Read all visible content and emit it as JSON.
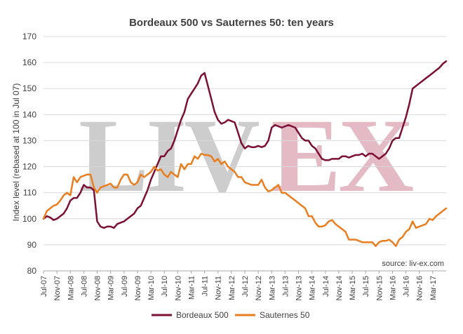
{
  "chart_data": {
    "type": "line",
    "title": "Bordeaux 500 vs Sauternes 50: ten years",
    "ylabel": "Index level (rebased at 100 in Jul 07)",
    "xlabel": "",
    "ylim": [
      80,
      170
    ],
    "yticks": [
      80,
      90,
      100,
      110,
      120,
      130,
      140,
      150,
      160,
      170
    ],
    "grid": "horizontal",
    "legend": "bottom",
    "x_range": [
      "2007-07",
      "2017-07"
    ],
    "x_tick_labels": [
      "Jul-07",
      "Nov-07",
      "Mar-08",
      "Jul-08",
      "Nov-08",
      "Mar-09",
      "Jul-09",
      "Nov-09",
      "Mar-10",
      "Jul-10",
      "Nov-10",
      "Mar-11",
      "Jul-11",
      "Nov-11",
      "Mar-12",
      "Jul-12",
      "Nov-12",
      "Mar-13",
      "Jul-13",
      "Nov-13",
      "Mar-14",
      "Jul-14",
      "Nov-14",
      "Mar-15",
      "Jul-15",
      "Nov-15",
      "Mar-16",
      "Jul-16",
      "Nov-16",
      "Mar-17"
    ],
    "source": "source: liv-ex.com",
    "watermark": {
      "text_left": "LIV",
      "text_right": "EX",
      "color_left": "#c8c8c8",
      "color_right": "#e2b4bf"
    },
    "series": [
      {
        "name": "Bordeaux 500",
        "color": "#7b1034",
        "points": [
          [
            "2007-07",
            100
          ],
          [
            "2007-08",
            101
          ],
          [
            "2007-09",
            100.5
          ],
          [
            "2007-10",
            99.5
          ],
          [
            "2007-11",
            100
          ],
          [
            "2007-12",
            101
          ],
          [
            "2008-01",
            102
          ],
          [
            "2008-02",
            104
          ],
          [
            "2008-03",
            107
          ],
          [
            "2008-04",
            108
          ],
          [
            "2008-05",
            108
          ],
          [
            "2008-06",
            110
          ],
          [
            "2008-07",
            113
          ],
          [
            "2008-08",
            112
          ],
          [
            "2008-09",
            112
          ],
          [
            "2008-10",
            111
          ],
          [
            "2008-11",
            99
          ],
          [
            "2008-12",
            97
          ],
          [
            "2009-01",
            96.5
          ],
          [
            "2009-02",
            97
          ],
          [
            "2009-03",
            97
          ],
          [
            "2009-04",
            96.5
          ],
          [
            "2009-05",
            98
          ],
          [
            "2009-06",
            98.5
          ],
          [
            "2009-07",
            99
          ],
          [
            "2009-08",
            100
          ],
          [
            "2009-09",
            101
          ],
          [
            "2009-10",
            102
          ],
          [
            "2009-11",
            104
          ],
          [
            "2009-12",
            105
          ],
          [
            "2010-01",
            108
          ],
          [
            "2010-02",
            111
          ],
          [
            "2010-03",
            115
          ],
          [
            "2010-04",
            118
          ],
          [
            "2010-05",
            121
          ],
          [
            "2010-06",
            124
          ],
          [
            "2010-07",
            124
          ],
          [
            "2010-08",
            126
          ],
          [
            "2010-09",
            127
          ],
          [
            "2010-10",
            130
          ],
          [
            "2010-11",
            134
          ],
          [
            "2010-12",
            138
          ],
          [
            "2011-01",
            141
          ],
          [
            "2011-02",
            146
          ],
          [
            "2011-03",
            148
          ],
          [
            "2011-04",
            150
          ],
          [
            "2011-05",
            152
          ],
          [
            "2011-06",
            155
          ],
          [
            "2011-07",
            156
          ],
          [
            "2011-08",
            151
          ],
          [
            "2011-09",
            146
          ],
          [
            "2011-10",
            141
          ],
          [
            "2011-11",
            138
          ],
          [
            "2011-12",
            136.5
          ],
          [
            "2012-01",
            137
          ],
          [
            "2012-02",
            138
          ],
          [
            "2012-03",
            137.5
          ],
          [
            "2012-04",
            137
          ],
          [
            "2012-05",
            133
          ],
          [
            "2012-06",
            129
          ],
          [
            "2012-07",
            127
          ],
          [
            "2012-08",
            128
          ],
          [
            "2012-09",
            127.5
          ],
          [
            "2012-10",
            127.5
          ],
          [
            "2012-11",
            128
          ],
          [
            "2012-12",
            127.5
          ],
          [
            "2013-01",
            128
          ],
          [
            "2013-02",
            130
          ],
          [
            "2013-03",
            135
          ],
          [
            "2013-04",
            136
          ],
          [
            "2013-05",
            135.5
          ],
          [
            "2013-06",
            135
          ],
          [
            "2013-07",
            135.5
          ],
          [
            "2013-08",
            136
          ],
          [
            "2013-09",
            135.5
          ],
          [
            "2013-10",
            135
          ],
          [
            "2013-11",
            133
          ],
          [
            "2013-12",
            131
          ],
          [
            "2014-01",
            130
          ],
          [
            "2014-02",
            130
          ],
          [
            "2014-03",
            128
          ],
          [
            "2014-04",
            127
          ],
          [
            "2014-05",
            125
          ],
          [
            "2014-06",
            123
          ],
          [
            "2014-07",
            122.5
          ],
          [
            "2014-08",
            122.5
          ],
          [
            "2014-09",
            123
          ],
          [
            "2014-10",
            123
          ],
          [
            "2014-11",
            123
          ],
          [
            "2014-12",
            124
          ],
          [
            "2015-01",
            124
          ],
          [
            "2015-02",
            123.5
          ],
          [
            "2015-03",
            124
          ],
          [
            "2015-04",
            124.5
          ],
          [
            "2015-05",
            124.5
          ],
          [
            "2015-06",
            125
          ],
          [
            "2015-07",
            124
          ],
          [
            "2015-08",
            125
          ],
          [
            "2015-09",
            125
          ],
          [
            "2015-10",
            124
          ],
          [
            "2015-11",
            123
          ],
          [
            "2015-12",
            124
          ],
          [
            "2016-01",
            125
          ],
          [
            "2016-02",
            127
          ],
          [
            "2016-03",
            130
          ],
          [
            "2016-04",
            131
          ],
          [
            "2016-05",
            131
          ],
          [
            "2016-06",
            135
          ],
          [
            "2016-07",
            139
          ],
          [
            "2016-08",
            144
          ],
          [
            "2016-09",
            150
          ],
          [
            "2016-10",
            151
          ],
          [
            "2016-11",
            152
          ],
          [
            "2016-12",
            153
          ],
          [
            "2017-01",
            154
          ],
          [
            "2017-02",
            155
          ],
          [
            "2017-03",
            156
          ],
          [
            "2017-04",
            157
          ],
          [
            "2017-05",
            158
          ],
          [
            "2017-06",
            159.5
          ],
          [
            "2017-07",
            160.5
          ]
        ]
      },
      {
        "name": "Sauternes 50",
        "color": "#e97e21",
        "points": [
          [
            "2007-07",
            100
          ],
          [
            "2007-08",
            103
          ],
          [
            "2007-09",
            104
          ],
          [
            "2007-10",
            105
          ],
          [
            "2007-11",
            105.5
          ],
          [
            "2007-12",
            107
          ],
          [
            "2008-01",
            109
          ],
          [
            "2008-02",
            110
          ],
          [
            "2008-03",
            109
          ],
          [
            "2008-04",
            116
          ],
          [
            "2008-05",
            114
          ],
          [
            "2008-06",
            116
          ],
          [
            "2008-07",
            116.5
          ],
          [
            "2008-08",
            117
          ],
          [
            "2008-09",
            117
          ],
          [
            "2008-10",
            112
          ],
          [
            "2008-11",
            110
          ],
          [
            "2008-12",
            112
          ],
          [
            "2009-01",
            112.5
          ],
          [
            "2009-02",
            113
          ],
          [
            "2009-03",
            113.5
          ],
          [
            "2009-04",
            112
          ],
          [
            "2009-05",
            112
          ],
          [
            "2009-06",
            115
          ],
          [
            "2009-07",
            117
          ],
          [
            "2009-08",
            117
          ],
          [
            "2009-09",
            114
          ],
          [
            "2009-10",
            113
          ],
          [
            "2009-11",
            114
          ],
          [
            "2009-12",
            117
          ],
          [
            "2010-01",
            116
          ],
          [
            "2010-02",
            117
          ],
          [
            "2010-03",
            118
          ],
          [
            "2010-04",
            120
          ],
          [
            "2010-05",
            118.5
          ],
          [
            "2010-06",
            119
          ],
          [
            "2010-07",
            117
          ],
          [
            "2010-08",
            116
          ],
          [
            "2010-09",
            118
          ],
          [
            "2010-10",
            117
          ],
          [
            "2010-11",
            116
          ],
          [
            "2010-12",
            121
          ],
          [
            "2011-01",
            119
          ],
          [
            "2011-02",
            121
          ],
          [
            "2011-03",
            121
          ],
          [
            "2011-04",
            124
          ],
          [
            "2011-05",
            123
          ],
          [
            "2011-06",
            125
          ],
          [
            "2011-07",
            124.5
          ],
          [
            "2011-08",
            124.5
          ],
          [
            "2011-09",
            124
          ],
          [
            "2011-10",
            122
          ],
          [
            "2011-11",
            123
          ],
          [
            "2011-12",
            121
          ],
          [
            "2012-01",
            122
          ],
          [
            "2012-02",
            120
          ],
          [
            "2012-03",
            119
          ],
          [
            "2012-04",
            118
          ],
          [
            "2012-05",
            116
          ],
          [
            "2012-06",
            116
          ],
          [
            "2012-07",
            114
          ],
          [
            "2012-08",
            113.5
          ],
          [
            "2012-09",
            113
          ],
          [
            "2012-10",
            113
          ],
          [
            "2012-11",
            113
          ],
          [
            "2012-12",
            115
          ],
          [
            "2013-01",
            112
          ],
          [
            "2013-02",
            110.5
          ],
          [
            "2013-03",
            111
          ],
          [
            "2013-04",
            112
          ],
          [
            "2013-05",
            113
          ],
          [
            "2013-06",
            110
          ],
          [
            "2013-07",
            110
          ],
          [
            "2013-08",
            109
          ],
          [
            "2013-09",
            108
          ],
          [
            "2013-10",
            107
          ],
          [
            "2013-11",
            106
          ],
          [
            "2013-12",
            105
          ],
          [
            "2014-01",
            104
          ],
          [
            "2014-02",
            101
          ],
          [
            "2014-03",
            101
          ],
          [
            "2014-04",
            98.5
          ],
          [
            "2014-05",
            97
          ],
          [
            "2014-06",
            97
          ],
          [
            "2014-07",
            97.5
          ],
          [
            "2014-08",
            99
          ],
          [
            "2014-09",
            99.5
          ],
          [
            "2014-10",
            98
          ],
          [
            "2014-11",
            97
          ],
          [
            "2014-12",
            96
          ],
          [
            "2015-01",
            95
          ],
          [
            "2015-02",
            92
          ],
          [
            "2015-03",
            92
          ],
          [
            "2015-04",
            92
          ],
          [
            "2015-05",
            91.5
          ],
          [
            "2015-06",
            91
          ],
          [
            "2015-07",
            91
          ],
          [
            "2015-08",
            91
          ],
          [
            "2015-09",
            91
          ],
          [
            "2015-10",
            89.5
          ],
          [
            "2015-11",
            91
          ],
          [
            "2015-12",
            91.5
          ],
          [
            "2016-01",
            91.5
          ],
          [
            "2016-02",
            92
          ],
          [
            "2016-03",
            91
          ],
          [
            "2016-04",
            89.5
          ],
          [
            "2016-05",
            92
          ],
          [
            "2016-06",
            93
          ],
          [
            "2016-07",
            95
          ],
          [
            "2016-08",
            96
          ],
          [
            "2016-09",
            99
          ],
          [
            "2016-10",
            96.5
          ],
          [
            "2016-11",
            97
          ],
          [
            "2016-12",
            97.5
          ],
          [
            "2017-01",
            98
          ],
          [
            "2017-02",
            100
          ],
          [
            "2017-03",
            99.5
          ],
          [
            "2017-04",
            101
          ],
          [
            "2017-05",
            102
          ],
          [
            "2017-06",
            103
          ],
          [
            "2017-07",
            104
          ]
        ]
      }
    ]
  }
}
